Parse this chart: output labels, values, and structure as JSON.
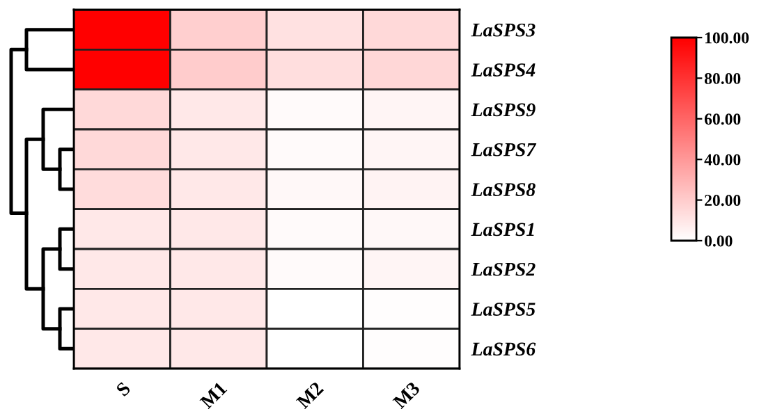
{
  "chart_data": {
    "type": "heatmap",
    "categories": [
      "S",
      "M1",
      "M2",
      "M3"
    ],
    "y_categories": [
      "LaSPS3",
      "LaSPS4",
      "LaSPS9",
      "LaSPS7",
      "LaSPS8",
      "LaSPS1",
      "LaSPS2",
      "LaSPS5",
      "LaSPS6"
    ],
    "cells": [
      [
        100,
        19,
        12,
        15
      ],
      [
        100,
        20,
        13,
        16
      ],
      [
        15,
        9,
        2,
        4
      ],
      [
        15,
        9,
        2,
        4
      ],
      [
        14,
        9,
        3,
        5
      ],
      [
        9,
        9,
        2,
        3
      ],
      [
        9,
        9,
        2,
        4
      ],
      [
        9,
        9,
        0,
        1
      ],
      [
        9,
        9,
        0,
        1
      ]
    ],
    "clim": [
      0,
      100
    ],
    "cticks": [
      {
        "value": 0,
        "label": "0.00"
      },
      {
        "value": 20,
        "label": "20.00"
      },
      {
        "value": 40,
        "label": "40.00"
      },
      {
        "value": 60,
        "label": "60.00"
      },
      {
        "value": 80,
        "label": "80.00"
      },
      {
        "value": 100,
        "label": "100.00"
      }
    ],
    "colors": [
      "#ffffff",
      "#ff0000"
    ]
  }
}
